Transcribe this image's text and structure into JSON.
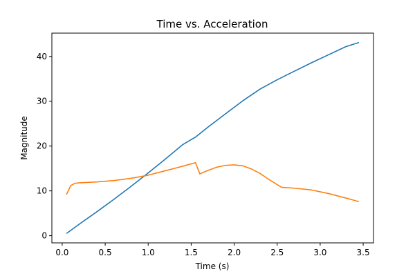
{
  "chart_data": {
    "type": "line",
    "title": "Time vs. Acceleration",
    "xlabel": "Time (s)",
    "ylabel": "Magnitude",
    "xlim": [
      -0.12,
      3.62
    ],
    "ylim": [
      -1.6,
      45.2
    ],
    "xticks": [
      0.0,
      0.5,
      1.0,
      1.5,
      2.0,
      2.5,
      3.0,
      3.5
    ],
    "xtick_labels": [
      "0.0",
      "0.5",
      "1.0",
      "1.5",
      "2.0",
      "2.5",
      "3.0",
      "3.5"
    ],
    "yticks": [
      0,
      10,
      20,
      30,
      40
    ],
    "ytick_labels": [
      "0",
      "10",
      "20",
      "30",
      "40"
    ],
    "grid": false,
    "series": [
      {
        "color": "#1f77b4",
        "x": [
          0.05,
          0.2,
          0.4,
          0.6,
          0.8,
          1.0,
          1.2,
          1.4,
          1.55,
          1.7,
          1.9,
          2.1,
          2.3,
          2.5,
          2.7,
          2.9,
          3.1,
          3.3,
          3.45
        ],
        "y": [
          0.5,
          2.6,
          5.3,
          8.1,
          11.0,
          14.0,
          17.1,
          20.3,
          22.0,
          24.3,
          27.2,
          30.1,
          32.7,
          34.8,
          36.7,
          38.6,
          40.4,
          42.2,
          43.1
        ]
      },
      {
        "color": "#ff7f0e",
        "x": [
          0.05,
          0.1,
          0.15,
          0.2,
          0.4,
          0.6,
          0.8,
          1.0,
          1.2,
          1.4,
          1.55,
          1.6,
          1.7,
          1.8,
          1.9,
          2.0,
          2.1,
          2.2,
          2.3,
          2.4,
          2.55,
          2.7,
          2.9,
          3.1,
          3.3,
          3.45
        ],
        "y": [
          9.2,
          11.2,
          11.7,
          11.8,
          12.0,
          12.3,
          12.8,
          13.5,
          14.5,
          15.5,
          16.3,
          13.8,
          14.6,
          15.3,
          15.7,
          15.8,
          15.6,
          14.9,
          13.9,
          12.6,
          10.8,
          10.6,
          10.2,
          9.4,
          8.4,
          7.6
        ]
      }
    ]
  }
}
